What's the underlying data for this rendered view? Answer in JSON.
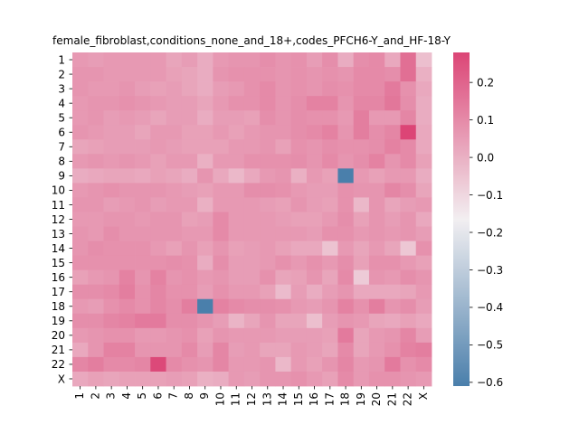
{
  "chart_data": {
    "type": "heatmap",
    "title": "female_fibroblast,conditions_none_and_18+,codes_PFCH6-Y_and_HF-18-Y",
    "xlabel": "",
    "ylabel": "",
    "x_labels": [
      "1",
      "2",
      "3",
      "4",
      "5",
      "6",
      "7",
      "8",
      "9",
      "10",
      "11",
      "12",
      "13",
      "14",
      "15",
      "16",
      "17",
      "18",
      "19",
      "20",
      "21",
      "22",
      "X"
    ],
    "y_labels": [
      "1",
      "2",
      "3",
      "4",
      "5",
      "6",
      "7",
      "8",
      "9",
      "10",
      "11",
      "12",
      "13",
      "14",
      "15",
      "16",
      "17",
      "18",
      "19",
      "20",
      "21",
      "22",
      "X"
    ],
    "colorbar": {
      "min": -0.61,
      "max": 0.28,
      "ticks": [
        0.2,
        0.1,
        0.0,
        -0.1,
        -0.2,
        -0.3,
        -0.4,
        -0.5,
        -0.6
      ],
      "tick_labels": [
        "0.2",
        "0.1",
        "0.0",
        "−0.1",
        "−0.2",
        "−0.3",
        "−0.4",
        "−0.5",
        "−0.6"
      ],
      "colors": {
        "low": "#4a7fab",
        "mid": "#f2eff1",
        "high": "#dc4576"
      }
    },
    "values": [
      [
        0.06,
        0.05,
        0.06,
        0.06,
        0.06,
        0.06,
        0.03,
        0.05,
        0.01,
        0.06,
        0.07,
        0.07,
        0.09,
        0.07,
        0.08,
        0.05,
        0.09,
        0.01,
        0.09,
        0.1,
        0.02,
        0.17,
        -0.04
      ],
      [
        0.07,
        0.07,
        0.06,
        0.06,
        0.06,
        0.06,
        0.04,
        0.03,
        0.01,
        0.07,
        0.08,
        0.08,
        0.08,
        0.07,
        0.08,
        0.07,
        0.08,
        0.07,
        0.1,
        0.1,
        0.09,
        0.17,
        0.0
      ],
      [
        0.07,
        0.06,
        0.06,
        0.07,
        0.05,
        0.04,
        0.05,
        0.03,
        0.01,
        0.05,
        0.06,
        0.08,
        0.1,
        0.07,
        0.08,
        0.07,
        0.09,
        0.08,
        0.1,
        0.1,
        0.14,
        0.08,
        0.02
      ],
      [
        0.06,
        0.07,
        0.07,
        0.08,
        0.07,
        0.06,
        0.05,
        0.05,
        0.03,
        0.06,
        0.08,
        0.08,
        0.1,
        0.07,
        0.09,
        0.12,
        0.12,
        0.07,
        0.11,
        0.11,
        0.15,
        0.09,
        0.01
      ],
      [
        0.06,
        0.07,
        0.05,
        0.06,
        0.05,
        0.03,
        0.05,
        0.05,
        0.01,
        0.05,
        0.05,
        0.04,
        0.09,
        0.07,
        0.09,
        0.08,
        0.08,
        0.06,
        0.13,
        0.06,
        0.06,
        0.11,
        0.01
      ],
      [
        0.07,
        0.06,
        0.05,
        0.05,
        0.03,
        0.06,
        0.06,
        0.04,
        0.04,
        0.06,
        0.04,
        0.06,
        0.07,
        0.07,
        0.09,
        0.1,
        0.12,
        0.07,
        0.13,
        0.09,
        0.11,
        0.28,
        0.02
      ],
      [
        0.03,
        0.04,
        0.05,
        0.05,
        0.05,
        0.06,
        0.05,
        0.04,
        0.04,
        0.04,
        0.06,
        0.06,
        0.07,
        0.04,
        0.08,
        0.07,
        0.09,
        0.08,
        0.08,
        0.09,
        0.12,
        0.1,
        0.02
      ],
      [
        0.06,
        0.07,
        0.06,
        0.07,
        0.06,
        0.04,
        0.06,
        0.06,
        0.0,
        0.06,
        0.06,
        0.08,
        0.08,
        0.08,
        0.09,
        0.07,
        0.1,
        0.07,
        0.09,
        0.12,
        0.07,
        0.1,
        0.04
      ],
      [
        0.01,
        0.02,
        0.03,
        0.03,
        0.02,
        0.04,
        0.03,
        0.01,
        0.07,
        0.02,
        -0.02,
        0.02,
        0.06,
        0.07,
        0.0,
        0.06,
        0.04,
        -0.61,
        0.06,
        0.04,
        0.06,
        0.06,
        0.01
      ],
      [
        0.06,
        0.07,
        0.08,
        0.07,
        0.07,
        0.07,
        0.06,
        0.05,
        0.04,
        0.06,
        0.06,
        0.09,
        0.09,
        0.08,
        0.06,
        0.05,
        0.05,
        0.08,
        0.07,
        0.07,
        0.11,
        0.09,
        0.03
      ],
      [
        0.07,
        0.07,
        0.05,
        0.06,
        0.07,
        0.05,
        0.06,
        0.06,
        0.0,
        0.06,
        0.06,
        0.06,
        0.05,
        0.04,
        0.07,
        0.05,
        0.04,
        0.08,
        -0.02,
        0.07,
        0.03,
        0.05,
        0.06
      ],
      [
        0.06,
        0.06,
        0.07,
        0.07,
        0.06,
        0.07,
        0.07,
        0.04,
        0.05,
        0.1,
        0.06,
        0.06,
        0.06,
        0.05,
        0.04,
        0.04,
        0.06,
        0.09,
        0.04,
        0.07,
        0.05,
        0.07,
        0.02
      ],
      [
        0.07,
        0.06,
        0.09,
        0.07,
        0.07,
        0.07,
        0.07,
        0.06,
        0.06,
        0.1,
        0.06,
        0.06,
        0.06,
        0.06,
        0.06,
        0.05,
        0.08,
        0.08,
        0.06,
        0.07,
        0.06,
        0.07,
        0.05
      ],
      [
        0.07,
        0.09,
        0.08,
        0.08,
        0.08,
        0.06,
        0.04,
        0.07,
        0.04,
        0.07,
        0.04,
        0.05,
        0.06,
        0.04,
        0.02,
        0.02,
        -0.05,
        0.06,
        0.03,
        0.06,
        0.03,
        -0.06,
        0.08
      ],
      [
        0.08,
        0.08,
        0.08,
        0.08,
        0.08,
        0.08,
        0.09,
        0.08,
        0.01,
        0.09,
        0.05,
        0.05,
        0.06,
        0.08,
        0.06,
        0.08,
        0.06,
        0.09,
        0.04,
        0.08,
        0.08,
        0.06,
        0.04
      ],
      [
        0.04,
        0.06,
        0.07,
        0.12,
        0.07,
        0.12,
        0.07,
        0.08,
        0.06,
        0.07,
        0.05,
        0.05,
        0.08,
        0.03,
        0.04,
        0.07,
        0.03,
        0.1,
        -0.07,
        0.07,
        0.06,
        0.09,
        0.07
      ],
      [
        0.09,
        0.09,
        0.1,
        0.13,
        0.08,
        0.11,
        0.08,
        0.08,
        0.05,
        0.08,
        0.06,
        0.06,
        0.04,
        -0.03,
        0.05,
        0.01,
        0.05,
        0.07,
        0.02,
        0.02,
        0.02,
        0.03,
        0.06
      ],
      [
        0.06,
        0.05,
        0.08,
        0.1,
        0.08,
        0.11,
        0.09,
        0.13,
        -0.61,
        0.12,
        0.1,
        0.09,
        0.09,
        0.08,
        0.06,
        0.05,
        0.07,
        0.12,
        0.08,
        0.13,
        0.07,
        0.09,
        0.05
      ],
      [
        0.09,
        0.09,
        0.11,
        0.12,
        0.14,
        0.14,
        0.09,
        0.09,
        0.07,
        0.05,
        -0.01,
        0.03,
        0.07,
        0.03,
        0.03,
        -0.04,
        0.05,
        0.07,
        0.06,
        0.03,
        0.02,
        0.04,
        0.02
      ],
      [
        0.06,
        0.07,
        0.08,
        0.08,
        0.06,
        0.06,
        0.07,
        0.08,
        0.04,
        0.07,
        0.06,
        0.06,
        0.06,
        0.05,
        0.05,
        0.05,
        0.04,
        0.14,
        0.03,
        0.06,
        0.07,
        0.11,
        0.05
      ],
      [
        0.02,
        0.07,
        0.12,
        0.12,
        0.07,
        0.07,
        0.07,
        0.1,
        0.05,
        0.11,
        0.05,
        0.06,
        0.03,
        0.03,
        0.06,
        0.05,
        0.03,
        0.1,
        0.03,
        0.06,
        0.08,
        0.12,
        0.13
      ],
      [
        0.11,
        0.13,
        0.1,
        0.1,
        0.11,
        0.27,
        0.1,
        0.08,
        0.07,
        0.11,
        0.06,
        0.06,
        0.07,
        -0.02,
        0.06,
        0.04,
        0.07,
        0.11,
        0.06,
        0.07,
        0.14,
        0.08,
        0.1
      ],
      [
        0.02,
        0.04,
        0.03,
        0.04,
        0.04,
        0.04,
        0.05,
        0.04,
        0.0,
        0.01,
        0.06,
        0.05,
        0.07,
        0.07,
        0.08,
        0.06,
        0.04,
        0.1,
        0.06,
        0.08,
        0.08,
        0.07,
        0.06
      ]
    ]
  }
}
